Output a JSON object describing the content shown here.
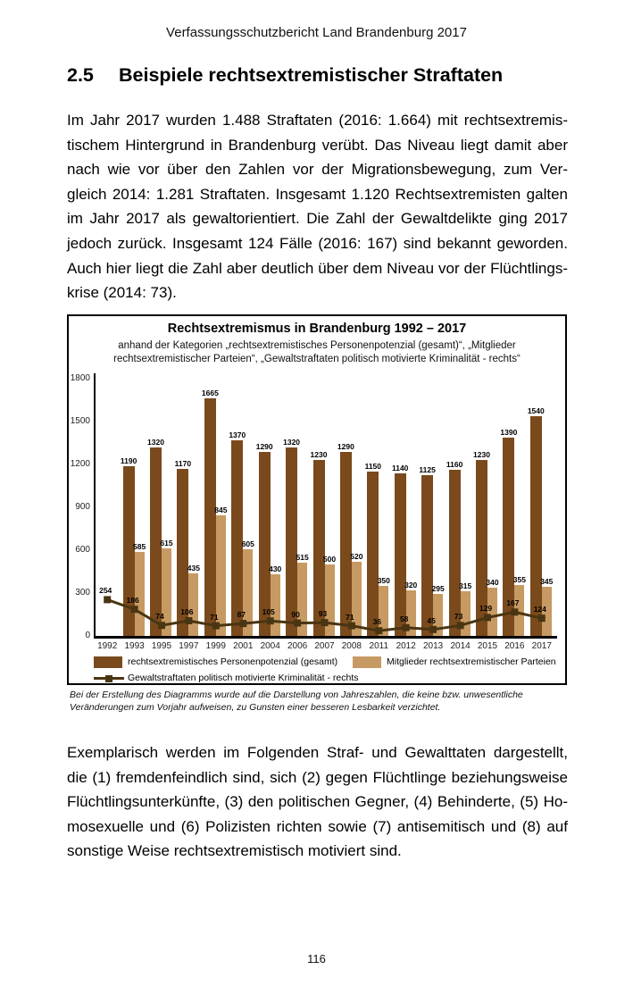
{
  "page": {
    "header": "Verfassungsschutzbericht Land Brandenburg 2017",
    "section_number": "2.5",
    "section_title": "Beispiele rechtsextremistischer Straftaten",
    "paragraph1_lines": [
      "Im Jahr 2017 wurden 1.488 Straftaten (2016: 1.664) mit rechtsextremis-",
      "tischem Hintergrund in Brandenburg verübt. Das Niveau liegt damit aber",
      "nach wie vor über den Zahlen vor der Migrationsbewegung, zum Ver-",
      "gleich 2014: 1.281 Straftaten. Insgesamt 1.120 Rechtsextremisten galten",
      "im Jahr 2017 als gewaltorientiert. Die Zahl der Gewaltdelikte ging 2017",
      "jedoch zurück. Insgesamt 124 Fälle (2016: 167) sind bekannt geworden.",
      "Auch hier liegt die Zahl aber deutlich über dem Niveau vor der Flüchtlings-",
      "krise (2014: 73)."
    ],
    "paragraph2_lines": [
      "Exemplarisch werden im Folgenden Straf- und Gewalttaten dargestellt,",
      "die (1) fremdenfeindlich sind, sich (2) gegen Flüchtlinge beziehungsweise",
      "Flüchtlingsunterkünfte, (3) den politischen Gegner, (4) Behinderte, (5) Ho-",
      "mosexuelle und (6) Polizisten richten sowie (7) antisemitisch und (8) auf",
      "sonstige Weise rechtsextremistisch motiviert sind."
    ],
    "footnote_lines": [
      "Bei der Erstellung des Diagramms wurde auf die Darstellung von Jahreszahlen, die keine bzw. unwesentliche",
      "Veränderungen zum Vorjahr aufweisen, zu Gunsten einer besseren Lesbarkeit verzichtet."
    ],
    "page_number": "116"
  },
  "chart_data": {
    "type": "bar",
    "title": "Rechtsextremismus in Brandenburg 1992 – 2017",
    "subtitle_lines": [
      "anhand der Kategorien „rechtsextremistisches Personenpotenzial (gesamt)“, „Mitglieder",
      "rechtsextremistischer Parteien“, „Gewaltstraftaten politisch motivierte Kriminalität - rechts“"
    ],
    "categories": [
      "1992",
      "1993",
      "1995",
      "1997",
      "1999",
      "2001",
      "2004",
      "2006",
      "2007",
      "2008",
      "2011",
      "2012",
      "2013",
      "2014",
      "2015",
      "2016",
      "2017"
    ],
    "series": [
      {
        "name": "rechtsextremistisches Personenpotenzial (gesamt)",
        "type": "bar",
        "color": "#7a4a1c",
        "values": [
          null,
          1190,
          1320,
          1170,
          1665,
          1370,
          1290,
          1320,
          1230,
          1290,
          1150,
          1140,
          1125,
          1160,
          1230,
          1390,
          1540
        ]
      },
      {
        "name": "Mitglieder rechtsextremistischer Parteien",
        "type": "bar",
        "color": "#c69a62",
        "values": [
          null,
          585,
          615,
          435,
          845,
          605,
          430,
          515,
          500,
          520,
          350,
          320,
          295,
          315,
          340,
          355,
          345
        ]
      },
      {
        "name": "Gewaltstraftaten politisch motivierte Kriminalität - rechts",
        "type": "line",
        "color": "#4a3512",
        "values": [
          254,
          186,
          74,
          106,
          71,
          87,
          105,
          90,
          93,
          71,
          36,
          58,
          45,
          73,
          129,
          167,
          124
        ]
      }
    ],
    "ylim": [
      0,
      1800
    ],
    "yticks": [
      0,
      300,
      600,
      900,
      1200,
      1500,
      1800
    ],
    "grid": false,
    "legend_position": "bottom"
  }
}
